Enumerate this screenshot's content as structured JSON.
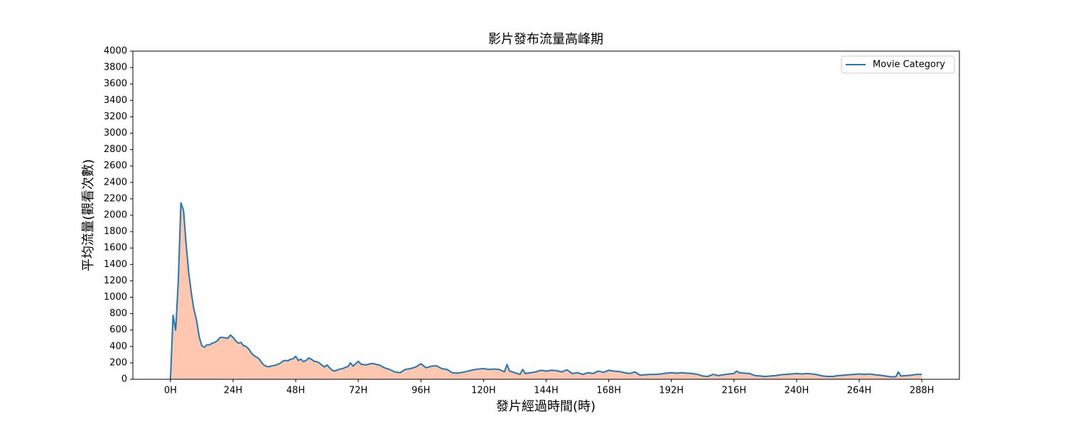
{
  "chart_data": {
    "type": "area_line",
    "title": "影片發布流量高峰期",
    "x_label": "發片經過時間(時)",
    "y_label": "平均流量(觀看次數)",
    "legend": "upper right",
    "xlim": [
      -14.4,
      302.4
    ],
    "ylim": [
      0,
      4000
    ],
    "xticks": [
      {
        "value": 0,
        "label": "0H"
      },
      {
        "value": 24,
        "label": "24H"
      },
      {
        "value": 48,
        "label": "48H"
      },
      {
        "value": 72,
        "label": "72H"
      },
      {
        "value": 96,
        "label": "96H"
      },
      {
        "value": 120,
        "label": "120H"
      },
      {
        "value": 144,
        "label": "144H"
      },
      {
        "value": 168,
        "label": "168H"
      },
      {
        "value": 192,
        "label": "192H"
      },
      {
        "value": 216,
        "label": "216H"
      },
      {
        "value": 240,
        "label": "240H"
      },
      {
        "value": 264,
        "label": "264H"
      },
      {
        "value": 288,
        "label": "288H"
      }
    ],
    "yticks": [
      0,
      200,
      400,
      600,
      800,
      1000,
      1200,
      1400,
      1600,
      1800,
      2000,
      2200,
      2400,
      2600,
      2800,
      3000,
      3200,
      3400,
      3600,
      3800,
      4000
    ],
    "x": [
      0,
      1,
      2,
      3,
      4,
      5,
      6,
      7,
      8,
      9,
      10,
      11,
      12,
      13,
      14,
      15,
      16,
      17,
      18,
      19,
      20,
      21,
      22,
      23,
      24,
      25,
      26,
      27,
      28,
      29,
      30,
      31,
      32,
      33,
      34,
      35,
      36,
      37,
      38,
      39,
      40,
      41,
      42,
      43,
      44,
      45,
      46,
      47,
      48,
      49,
      50,
      51,
      52,
      53,
      54,
      55,
      56,
      57,
      58,
      59,
      60,
      61,
      62,
      63,
      64,
      65,
      66,
      67,
      68,
      69,
      70,
      71,
      72,
      73,
      74,
      75,
      76,
      77,
      78,
      79,
      80,
      82,
      84,
      86,
      88,
      90,
      92,
      94,
      96,
      98,
      100,
      102,
      104,
      106,
      108,
      110,
      112,
      114,
      116,
      118,
      120,
      122,
      124,
      126,
      128,
      129,
      130,
      132,
      134,
      135,
      136,
      138,
      140,
      142,
      144,
      146,
      148,
      150,
      152,
      154,
      156,
      158,
      160,
      162,
      164,
      166,
      168,
      170,
      172,
      174,
      176,
      178,
      180,
      182,
      184,
      186,
      188,
      190,
      192,
      194,
      196,
      198,
      200,
      202,
      204,
      206,
      208,
      210,
      212,
      214,
      216,
      217,
      218,
      220,
      222,
      224,
      226,
      228,
      230,
      232,
      234,
      236,
      238,
      240,
      242,
      244,
      246,
      248,
      250,
      252,
      254,
      256,
      258,
      260,
      262,
      264,
      266,
      268,
      270,
      272,
      274,
      276,
      278,
      279,
      280,
      282,
      284,
      286,
      288
    ],
    "series": [
      {
        "name": "Movie Category",
        "color": "#1f77b4",
        "fill": "#ffc6b0",
        "values": [
          0,
          780,
          600,
          1200,
          2150,
          2060,
          1650,
          1300,
          1050,
          850,
          720,
          520,
          410,
          390,
          420,
          420,
          440,
          450,
          470,
          510,
          510,
          505,
          500,
          540,
          510,
          470,
          440,
          450,
          410,
          400,
          370,
          320,
          290,
          270,
          250,
          200,
          170,
          155,
          155,
          165,
          170,
          180,
          195,
          220,
          230,
          225,
          245,
          250,
          280,
          230,
          245,
          215,
          230,
          260,
          245,
          220,
          215,
          200,
          175,
          150,
          175,
          140,
          110,
          100,
          115,
          125,
          130,
          145,
          155,
          200,
          160,
          190,
          220,
          185,
          180,
          175,
          185,
          190,
          190,
          180,
          175,
          140,
          120,
          90,
          80,
          120,
          130,
          150,
          190,
          140,
          160,
          165,
          130,
          120,
          80,
          75,
          85,
          100,
          115,
          125,
          130,
          120,
          125,
          120,
          90,
          180,
          100,
          80,
          60,
          120,
          70,
          80,
          90,
          110,
          100,
          110,
          105,
          90,
          115,
          70,
          80,
          60,
          80,
          70,
          100,
          85,
          110,
          100,
          95,
          80,
          70,
          90,
          50,
          55,
          60,
          60,
          65,
          75,
          80,
          75,
          80,
          75,
          70,
          60,
          40,
          35,
          60,
          45,
          55,
          65,
          70,
          100,
          80,
          75,
          70,
          45,
          40,
          35,
          40,
          45,
          55,
          60,
          65,
          70,
          65,
          70,
          65,
          55,
          40,
          35,
          35,
          45,
          50,
          55,
          60,
          65,
          60,
          65,
          55,
          50,
          40,
          30,
          30,
          90,
          40,
          45,
          50,
          60,
          60
        ]
      }
    ]
  }
}
